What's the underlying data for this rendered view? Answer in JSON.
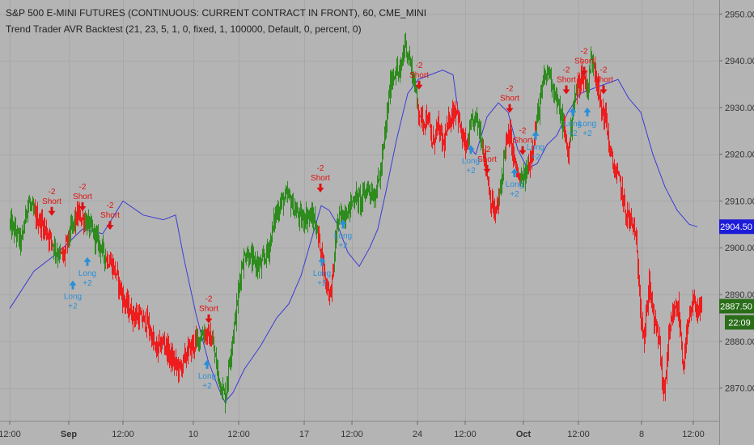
{
  "header": {
    "title": "S&P 500 E-MINI FUTURES (CONTINUOUS: CURRENT CONTRACT IN FRONT), 60, CME_MINI",
    "study": "Trend Trader AVR Backtest (21, 23, 5, 1, 0, fixed, 1, 100000, Default, 0, percent, 0)"
  },
  "colors": {
    "background": "#b4b4b4",
    "grid": "#a8a8a8",
    "up_bar": "#2e8b1e",
    "down_bar": "#ee1c1c",
    "trend_line": "#3b3bd6",
    "long_marker": "#2a8fd8",
    "short_marker": "#e01010",
    "price_label_green": "#2a6e1a",
    "indicator_label": "#1c1cd8"
  },
  "chart_data": {
    "type": "ohlc",
    "ylim": [
      2863,
      2953
    ],
    "y_ticks": [
      2870,
      2880,
      2890,
      2900,
      2910,
      2920,
      2930,
      2940,
      2950
    ],
    "y_tick_labels": [
      "2870.00",
      "2880.00",
      "2890.00",
      "2900.00",
      "2910.00",
      "2920.00",
      "2930.00",
      "2940.00",
      "2950.00"
    ],
    "x_ticks": [
      {
        "i": 0,
        "label": "12:00",
        "bold": false
      },
      {
        "i": 73,
        "label": "Sep",
        "bold": true
      },
      {
        "i": 140,
        "label": "12:00",
        "bold": false
      },
      {
        "i": 227,
        "label": "10",
        "bold": false
      },
      {
        "i": 283,
        "label": "12:00",
        "bold": false
      },
      {
        "i": 364,
        "label": "17",
        "bold": false
      },
      {
        "i": 423,
        "label": "12:00",
        "bold": false
      },
      {
        "i": 504,
        "label": "24",
        "bold": false
      },
      {
        "i": 563,
        "label": "12:00",
        "bold": false
      },
      {
        "i": 635,
        "label": "Oct",
        "bold": true
      },
      {
        "i": 703,
        "label": "12:00",
        "bold": false
      },
      {
        "i": 781,
        "label": "8",
        "bold": false
      },
      {
        "i": 845,
        "label": "12:00",
        "bold": false
      }
    ],
    "price_anchors": [
      [
        0,
        2905
      ],
      [
        8,
        2903
      ],
      [
        14,
        2901
      ],
      [
        22,
        2910
      ],
      [
        30,
        2907
      ],
      [
        40,
        2905
      ],
      [
        50,
        2902
      ],
      [
        58,
        2899
      ],
      [
        66,
        2898
      ],
      [
        72,
        2902
      ],
      [
        78,
        2905
      ],
      [
        84,
        2907
      ],
      [
        92,
        2906
      ],
      [
        100,
        2904
      ],
      [
        110,
        2901
      ],
      [
        118,
        2898
      ],
      [
        124,
        2897
      ],
      [
        130,
        2895
      ],
      [
        140,
        2889
      ],
      [
        150,
        2886
      ],
      [
        160,
        2885
      ],
      [
        170,
        2884
      ],
      [
        180,
        2878
      ],
      [
        190,
        2880
      ],
      [
        200,
        2876
      ],
      [
        210,
        2874
      ],
      [
        220,
        2878
      ],
      [
        230,
        2880
      ],
      [
        240,
        2882
      ],
      [
        250,
        2880
      ],
      [
        258,
        2872
      ],
      [
        266,
        2868
      ],
      [
        272,
        2877
      ],
      [
        280,
        2887
      ],
      [
        286,
        2896
      ],
      [
        292,
        2899
      ],
      [
        300,
        2897
      ],
      [
        310,
        2896
      ],
      [
        320,
        2900
      ],
      [
        328,
        2907
      ],
      [
        336,
        2910
      ],
      [
        344,
        2911
      ],
      [
        352,
        2908
      ],
      [
        360,
        2906
      ],
      [
        368,
        2907
      ],
      [
        376,
        2906
      ],
      [
        384,
        2900
      ],
      [
        390,
        2893
      ],
      [
        396,
        2890
      ],
      [
        400,
        2896
      ],
      [
        404,
        2905
      ],
      [
        410,
        2907
      ],
      [
        418,
        2908
      ],
      [
        426,
        2911
      ],
      [
        434,
        2910
      ],
      [
        442,
        2913
      ],
      [
        450,
        2911
      ],
      [
        458,
        2916
      ],
      [
        464,
        2925
      ],
      [
        470,
        2935
      ],
      [
        476,
        2938
      ],
      [
        482,
        2937
      ],
      [
        488,
        2944
      ],
      [
        494,
        2940
      ],
      [
        500,
        2935
      ],
      [
        504,
        2930
      ],
      [
        510,
        2927
      ],
      [
        516,
        2928
      ],
      [
        522,
        2922
      ],
      [
        528,
        2926
      ],
      [
        536,
        2922
      ],
      [
        544,
        2928
      ],
      [
        552,
        2930
      ],
      [
        558,
        2924
      ],
      [
        564,
        2921
      ],
      [
        570,
        2926
      ],
      [
        576,
        2928
      ],
      [
        582,
        2924
      ],
      [
        588,
        2918
      ],
      [
        594,
        2910
      ],
      [
        600,
        2907
      ],
      [
        606,
        2912
      ],
      [
        612,
        2922
      ],
      [
        618,
        2924
      ],
      [
        624,
        2918
      ],
      [
        630,
        2914
      ],
      [
        636,
        2915
      ],
      [
        642,
        2918
      ],
      [
        648,
        2924
      ],
      [
        654,
        2930
      ],
      [
        660,
        2936
      ],
      [
        666,
        2938
      ],
      [
        672,
        2934
      ],
      [
        678,
        2930
      ],
      [
        684,
        2926
      ],
      [
        690,
        2920
      ],
      [
        696,
        2930
      ],
      [
        702,
        2935
      ],
      [
        708,
        2937
      ],
      [
        714,
        2934
      ],
      [
        718,
        2940
      ],
      [
        722,
        2940
      ],
      [
        726,
        2935
      ],
      [
        730,
        2930
      ],
      [
        736,
        2928
      ],
      [
        742,
        2920
      ],
      [
        748,
        2916
      ],
      [
        754,
        2914
      ],
      [
        760,
        2908
      ],
      [
        766,
        2906
      ],
      [
        772,
        2904
      ],
      [
        776,
        2896
      ],
      [
        780,
        2886
      ],
      [
        784,
        2880
      ],
      [
        790,
        2893
      ],
      [
        796,
        2884
      ],
      [
        802,
        2881
      ],
      [
        808,
        2868
      ],
      [
        814,
        2880
      ],
      [
        820,
        2886
      ],
      [
        826,
        2887
      ],
      [
        832,
        2875
      ],
      [
        838,
        2883
      ],
      [
        844,
        2888
      ],
      [
        850,
        2887
      ],
      [
        855,
        2886
      ]
    ],
    "bar_phases": [
      [
        0,
        30,
        "up"
      ],
      [
        31,
        52,
        "down"
      ],
      [
        53,
        62,
        "up"
      ],
      [
        63,
        72,
        "down"
      ],
      [
        73,
        80,
        "up"
      ],
      [
        81,
        92,
        "down"
      ],
      [
        93,
        118,
        "up"
      ],
      [
        119,
        230,
        "down"
      ],
      [
        231,
        240,
        "up"
      ],
      [
        241,
        250,
        "down"
      ],
      [
        251,
        268,
        "up"
      ],
      [
        269,
        380,
        "up"
      ],
      [
        381,
        400,
        "down"
      ],
      [
        401,
        503,
        "up"
      ],
      [
        504,
        566,
        "down"
      ],
      [
        567,
        584,
        "up"
      ],
      [
        585,
        604,
        "down"
      ],
      [
        605,
        612,
        "up"
      ],
      [
        613,
        630,
        "down"
      ],
      [
        631,
        640,
        "up"
      ],
      [
        641,
        650,
        "down"
      ],
      [
        651,
        684,
        "up"
      ],
      [
        685,
        692,
        "down"
      ],
      [
        693,
        700,
        "up"
      ],
      [
        701,
        712,
        "down"
      ],
      [
        713,
        722,
        "up"
      ],
      [
        723,
        855,
        "down"
      ]
    ],
    "trend_line": [
      [
        0,
        2887
      ],
      [
        30,
        2895
      ],
      [
        60,
        2899
      ],
      [
        90,
        2904
      ],
      [
        115,
        2903
      ],
      [
        140,
        2910
      ],
      [
        165,
        2907
      ],
      [
        190,
        2906
      ],
      [
        205,
        2907
      ],
      [
        215,
        2898
      ],
      [
        230,
        2886
      ],
      [
        245,
        2876
      ],
      [
        258,
        2870
      ],
      [
        266,
        2867
      ],
      [
        276,
        2869
      ],
      [
        290,
        2874
      ],
      [
        310,
        2879
      ],
      [
        330,
        2885
      ],
      [
        345,
        2888
      ],
      [
        360,
        2894
      ],
      [
        375,
        2903
      ],
      [
        385,
        2909
      ],
      [
        395,
        2908
      ],
      [
        405,
        2905
      ],
      [
        418,
        2899
      ],
      [
        432,
        2896
      ],
      [
        445,
        2900
      ],
      [
        455,
        2904
      ],
      [
        465,
        2912
      ],
      [
        478,
        2923
      ],
      [
        492,
        2933
      ],
      [
        505,
        2936
      ],
      [
        520,
        2937
      ],
      [
        535,
        2938
      ],
      [
        548,
        2937
      ],
      [
        556,
        2927
      ],
      [
        566,
        2922
      ],
      [
        576,
        2920
      ],
      [
        590,
        2928
      ],
      [
        604,
        2931
      ],
      [
        616,
        2929
      ],
      [
        628,
        2921
      ],
      [
        640,
        2917
      ],
      [
        652,
        2918
      ],
      [
        664,
        2922
      ],
      [
        676,
        2924
      ],
      [
        690,
        2929
      ],
      [
        705,
        2933
      ],
      [
        720,
        2934
      ],
      [
        736,
        2935
      ],
      [
        752,
        2936
      ],
      [
        765,
        2932
      ],
      [
        780,
        2929
      ],
      [
        795,
        2920
      ],
      [
        810,
        2913
      ],
      [
        825,
        2908
      ],
      [
        840,
        2905
      ],
      [
        850,
        2904.5
      ]
    ],
    "signals": [
      {
        "type": "short",
        "i": 52,
        "price": 2907,
        "text": "Short",
        "amount": "-2"
      },
      {
        "type": "short",
        "i": 90,
        "price": 2908,
        "text": "Short",
        "amount": "-2"
      },
      {
        "type": "short",
        "i": 124,
        "price": 2904,
        "text": "Short",
        "amount": "-2"
      },
      {
        "type": "short",
        "i": 246,
        "price": 2884,
        "text": "Short",
        "amount": "-2"
      },
      {
        "type": "short",
        "i": 384,
        "price": 2912,
        "text": "Short",
        "amount": "-2"
      },
      {
        "type": "short",
        "i": 506,
        "price": 2934,
        "text": "Short",
        "amount": "-2"
      },
      {
        "type": "short",
        "i": 590,
        "price": 2916,
        "text": "Short",
        "amount": "-2"
      },
      {
        "type": "short",
        "i": 618,
        "price": 2929,
        "text": "Short",
        "amount": "-2"
      },
      {
        "type": "short",
        "i": 634,
        "price": 2920,
        "text": "Short",
        "amount": "-2"
      },
      {
        "type": "short",
        "i": 688,
        "price": 2933,
        "text": "Short",
        "amount": "-2"
      },
      {
        "type": "short",
        "i": 710,
        "price": 2937,
        "text": "Short",
        "amount": "-2"
      },
      {
        "type": "short",
        "i": 734,
        "price": 2933,
        "text": "Short",
        "amount": "-2"
      },
      {
        "type": "long",
        "i": 78,
        "price": 2893,
        "text": "Long",
        "amount": "+2"
      },
      {
        "type": "long",
        "i": 96,
        "price": 2898,
        "text": "Long",
        "amount": "+2"
      },
      {
        "type": "long",
        "i": 244,
        "price": 2876,
        "text": "Long",
        "amount": "+2"
      },
      {
        "type": "long",
        "i": 386,
        "price": 2898,
        "text": "Long",
        "amount": "+2"
      },
      {
        "type": "long",
        "i": 412,
        "price": 2906,
        "text": "Long",
        "amount": "+2"
      },
      {
        "type": "long",
        "i": 570,
        "price": 2922,
        "text": "Long",
        "amount": "+2"
      },
      {
        "type": "long",
        "i": 624,
        "price": 2917,
        "text": "Long",
        "amount": "+2"
      },
      {
        "type": "long",
        "i": 650,
        "price": 2925,
        "text": "Long",
        "amount": "+2"
      },
      {
        "type": "long",
        "i": 696,
        "price": 2930,
        "text": "Long",
        "amount": "+2"
      },
      {
        "type": "long",
        "i": 714,
        "price": 2930,
        "text": "Long",
        "amount": "+2"
      }
    ],
    "trend_label": {
      "text": "2904.50",
      "price": 2904.5
    },
    "last_price_label": {
      "text": "2887.50",
      "price": 2887.5
    },
    "countdown_label": {
      "text": "22:09"
    }
  }
}
